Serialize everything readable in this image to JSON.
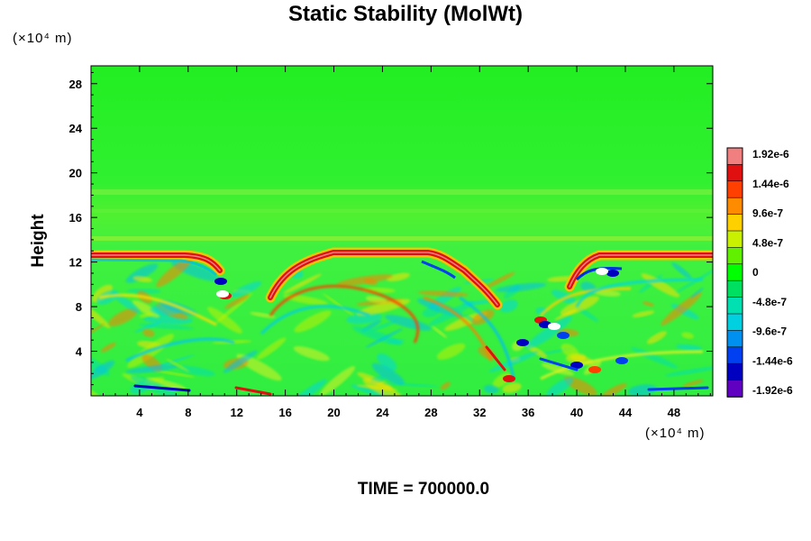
{
  "chart_data": {
    "type": "heatmap",
    "title": "Static Stability (MolWt)",
    "ylabel": "Height",
    "xlabel": "",
    "x_unit_label": "(×10⁴ m)",
    "y_unit_label": "(×10⁴ m)",
    "xlim": [
      0,
      51.2
    ],
    "ylim": [
      0,
      29.6
    ],
    "x_ticks": [
      4,
      8,
      12,
      16,
      20,
      24,
      28,
      32,
      36,
      40,
      44,
      48
    ],
    "y_ticks": [
      4,
      8,
      12,
      16,
      20,
      24,
      28
    ],
    "x_tick_labels": [
      "4",
      "8",
      "12",
      "16",
      "20",
      "24",
      "28",
      "32",
      "36",
      "40",
      "44",
      "48"
    ],
    "y_tick_labels": [
      "4",
      "8",
      "12",
      "16",
      "20",
      "24",
      "28"
    ],
    "colorbar": {
      "levels": [
        "1.92e-6",
        "1.44e-6",
        "9.6e-7",
        "4.8e-7",
        "0",
        "-4.8e-7",
        "-9.6e-7",
        "-1.44e-6",
        "-1.92e-6"
      ],
      "min": -1.92e-06,
      "max": 1.92e-06,
      "colors": [
        "#f08080",
        "#e01010",
        "#ff4000",
        "#ff8c00",
        "#ffd000",
        "#c8f000",
        "#60f000",
        "#00ff00",
        "#00e060",
        "#00e0b0",
        "#00d0e0",
        "#0090f0",
        "#0040f0",
        "#0000c0",
        "#6000c0"
      ]
    },
    "background_value": 0,
    "features": [
      {
        "name": "stable layer band",
        "value": 1.6e-06,
        "height": 12.9
      },
      {
        "name": "left hump",
        "x": [
          9,
          12
        ],
        "value": 1.5e-06
      },
      {
        "name": "central ridge",
        "x": [
          14,
          34
        ],
        "value": 1.6e-06
      },
      {
        "name": "right hump",
        "x": [
          38,
          44
        ],
        "value": 1.5e-06
      },
      {
        "name": "lower turbulent region",
        "y": [
          0,
          12
        ],
        "value_range": [
          -1.92e-06,
          1.92e-06
        ]
      }
    ]
  },
  "footer": {
    "time_label": "TIME = 700000.0"
  }
}
